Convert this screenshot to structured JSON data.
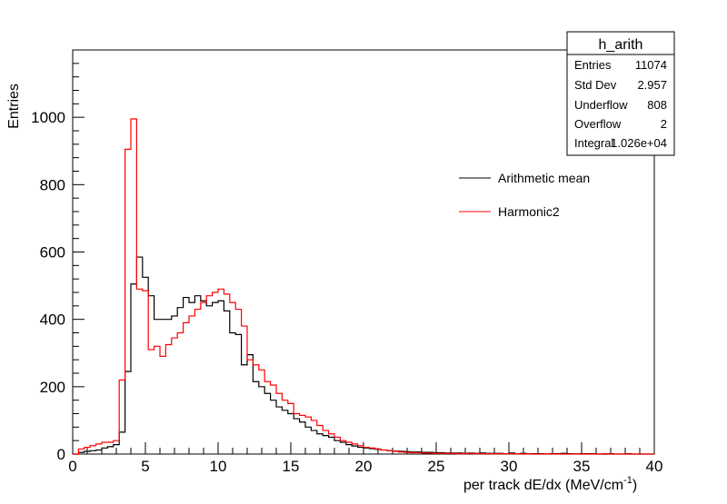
{
  "chart_data": {
    "type": "line",
    "xlabel": "per track dE/dx (MeV/cm",
    "xlabel_sup": "-1",
    "xlabel_suffix": ")",
    "ylabel": "Entries",
    "xlim": [
      0,
      40
    ],
    "ylim": [
      0,
      1200
    ],
    "x_ticks": [
      0,
      5,
      10,
      15,
      20,
      25,
      30,
      35,
      40
    ],
    "y_ticks": [
      0,
      200,
      400,
      600,
      800,
      1000
    ],
    "bin_width": 0.4,
    "legend_position": "upper-right",
    "series": [
      {
        "name": "Arithmetic mean",
        "color": "#000000",
        "values": [
          0,
          5,
          8,
          10,
          12,
          18,
          22,
          28,
          65,
          245,
          505,
          585,
          525,
          470,
          400,
          400,
          400,
          410,
          435,
          465,
          450,
          470,
          455,
          440,
          450,
          455,
          425,
          360,
          355,
          265,
          295,
          215,
          200,
          180,
          160,
          140,
          130,
          120,
          105,
          95,
          80,
          70,
          60,
          55,
          50,
          40,
          35,
          28,
          24,
          20,
          18,
          16,
          14,
          12,
          10,
          9,
          8,
          7,
          6,
          6,
          5,
          5,
          4,
          4,
          3,
          3,
          3,
          2,
          3,
          2,
          3,
          2,
          2,
          2,
          1,
          3,
          1,
          2,
          1,
          1,
          1,
          1,
          1,
          1,
          2,
          1,
          1,
          1,
          1,
          1,
          0,
          0,
          1,
          0,
          0,
          1,
          0,
          0,
          0,
          0
        ]
      },
      {
        "name": "Harmonic2",
        "color": "#ff0000",
        "values": [
          0,
          15,
          20,
          25,
          30,
          35,
          35,
          40,
          220,
          905,
          995,
          490,
          485,
          310,
          320,
          290,
          325,
          345,
          360,
          390,
          410,
          430,
          450,
          470,
          480,
          490,
          475,
          450,
          430,
          380,
          280,
          265,
          250,
          215,
          205,
          180,
          160,
          150,
          120,
          115,
          110,
          100,
          85,
          70,
          60,
          50,
          40,
          35,
          30,
          25,
          20,
          18,
          15,
          12,
          10,
          8,
          6,
          5,
          4,
          4,
          3,
          3,
          2,
          2,
          2,
          2,
          1,
          1,
          2,
          1,
          1,
          1,
          1,
          1,
          1,
          1,
          1,
          0,
          1,
          0,
          0,
          1,
          0,
          0,
          0,
          0,
          1,
          0,
          0,
          0,
          0,
          1,
          0,
          0,
          0,
          0,
          0,
          0,
          0,
          0
        ]
      }
    ],
    "stats_box": {
      "title": "h_arith",
      "rows": [
        {
          "label": "Entries",
          "value": "11074"
        },
        {
          "label": "Std Dev",
          "value": "2.957"
        },
        {
          "label": "Underflow",
          "value": "808"
        },
        {
          "label": "Overflow",
          "value": "2"
        },
        {
          "label": "Integral",
          "value": "1.026e+04"
        }
      ]
    }
  }
}
